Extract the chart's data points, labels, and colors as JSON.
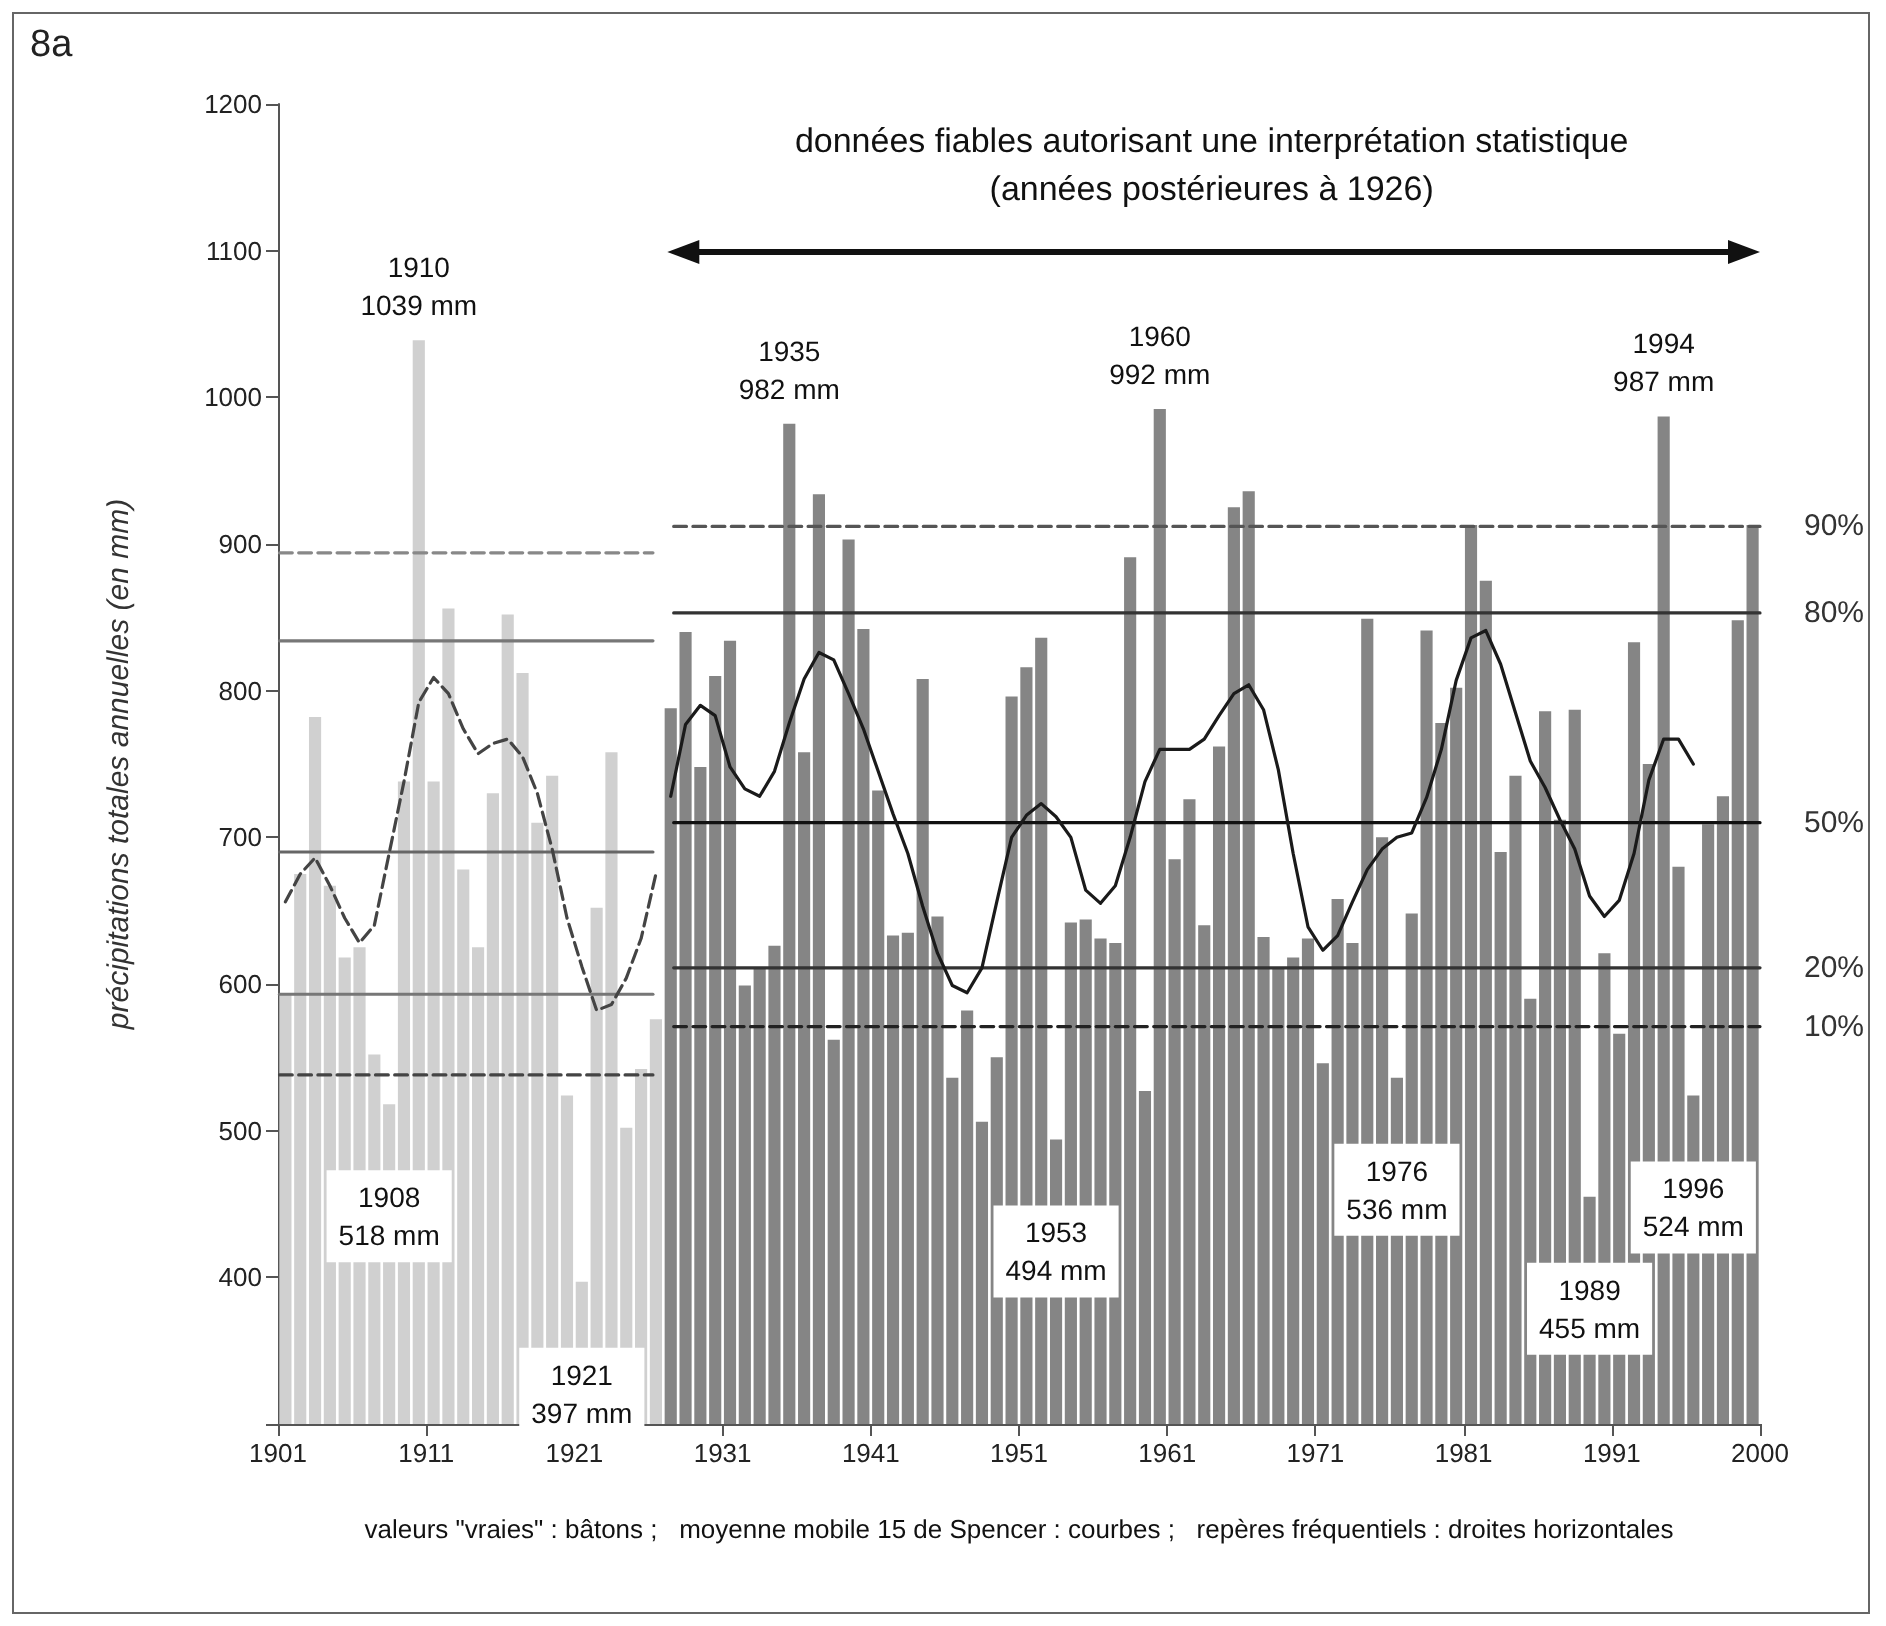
{
  "chart_data": {
    "type": "bar",
    "title": "8a",
    "ylabel": "précipitations totales annuelles (en mm)",
    "xlim": [
      1900.5,
      2000.5
    ],
    "xticks": [
      {
        "value": 1900.5,
        "label": "1901"
      },
      {
        "value": 1910.5,
        "label": "1911"
      },
      {
        "value": 1920.5,
        "label": "1921"
      },
      {
        "value": 1930.5,
        "label": "1931"
      },
      {
        "value": 1940.5,
        "label": "1941"
      },
      {
        "value": 1950.5,
        "label": "1951"
      },
      {
        "value": 1960.5,
        "label": "1961"
      },
      {
        "value": 1970.5,
        "label": "1971"
      },
      {
        "value": 1980.5,
        "label": "1981"
      },
      {
        "value": 1990.5,
        "label": "1991"
      },
      {
        "value": 2000.5,
        "label": "2000"
      }
    ],
    "ylim": [
      300,
      1200
    ],
    "yticks": [
      {
        "value": 300,
        "label": null
      },
      400,
      500,
      600,
      700,
      800,
      900,
      1000,
      1100,
      1200
    ],
    "grid": false,
    "legend": false,
    "marker": "none",
    "series": [
      {
        "color": "#d0d0d0",
        "x": [
          1901,
          1902,
          1903,
          1904,
          1905,
          1906,
          1907,
          1908,
          1909,
          1910,
          1911,
          1912,
          1913,
          1914,
          1915,
          1916,
          1917,
          1918,
          1919,
          1920,
          1921,
          1922,
          1923,
          1924,
          1925,
          1926
        ],
        "values": [
          593,
          675,
          782,
          667,
          618,
          625,
          552,
          518,
          738,
          1039,
          738,
          856,
          678,
          625,
          730,
          852,
          812,
          710,
          742,
          524,
          397,
          652,
          758,
          502,
          542,
          576
        ]
      },
      {
        "color": "#858585",
        "x": [
          1927,
          1928,
          1929,
          1930,
          1931,
          1932,
          1933,
          1934,
          1935,
          1936,
          1937,
          1938,
          1939,
          1940,
          1941,
          1942,
          1943,
          1944,
          1945,
          1946,
          1947,
          1948,
          1949,
          1950,
          1951,
          1952,
          1953,
          1954,
          1955,
          1956,
          1957,
          1958,
          1959,
          1960,
          1961,
          1962,
          1963,
          1964,
          1965,
          1966,
          1967,
          1968,
          1969,
          1970,
          1971,
          1972,
          1973,
          1974,
          1975,
          1976,
          1977,
          1978,
          1979,
          1980,
          1981,
          1982,
          1983,
          1984,
          1985,
          1986,
          1987,
          1988,
          1989,
          1990,
          1991,
          1992,
          1993,
          1994,
          1995,
          1996,
          1997,
          1998,
          1999,
          2000
        ],
        "values": [
          788,
          840,
          748,
          810,
          834,
          599,
          611,
          626,
          982,
          758,
          934,
          562,
          903,
          842,
          732,
          633,
          635,
          808,
          646,
          536,
          582,
          506,
          550,
          796,
          816,
          836,
          494,
          642,
          644,
          631,
          628,
          891,
          527,
          992,
          685,
          726,
          640,
          762,
          925,
          936,
          632,
          611,
          618,
          631,
          546,
          658,
          628,
          849,
          700,
          536,
          648,
          841,
          778,
          802,
          913,
          875,
          690,
          742,
          590,
          786,
          712,
          787,
          455,
          621,
          566,
          833,
          750,
          987,
          680,
          524,
          709,
          728,
          848,
          913
        ]
      },
      {
        "type": "line",
        "color": "#888888",
        "line_style": "dashed",
        "x": [
          1900.6,
          1925.8
        ],
        "values": [
          894,
          894
        ]
      },
      {
        "type": "line",
        "color": "#777777",
        "line_style": "solid",
        "x": [
          1900.6,
          1925.8
        ],
        "values": [
          834,
          834
        ]
      },
      {
        "type": "line",
        "color": "#666666",
        "line_style": "solid",
        "x": [
          1900.6,
          1925.8
        ],
        "values": [
          690,
          690
        ]
      },
      {
        "type": "line",
        "color": "#777777",
        "line_style": "solid",
        "x": [
          1900.6,
          1925.8
        ],
        "values": [
          593,
          593
        ]
      },
      {
        "type": "line",
        "color": "#444444",
        "line_style": "dashed",
        "x": [
          1900.6,
          1925.8
        ],
        "values": [
          538,
          538
        ]
      },
      {
        "type": "line",
        "name": "90%",
        "color": "#555555",
        "line_style": "dashed",
        "x": [
          1927.2,
          2000.5
        ],
        "values": [
          912,
          912
        ]
      },
      {
        "type": "line",
        "name": "80%",
        "color": "#333333",
        "line_style": "solid",
        "x": [
          1927.2,
          2000.5
        ],
        "values": [
          853,
          853
        ]
      },
      {
        "type": "line",
        "name": "50%",
        "color": "#111111",
        "line_style": "solid",
        "x": [
          1927.2,
          2000.5
        ],
        "values": [
          710,
          710
        ]
      },
      {
        "type": "line",
        "name": "20%",
        "color": "#333333",
        "line_style": "solid",
        "x": [
          1927.2,
          2000.5
        ],
        "values": [
          611,
          611
        ]
      },
      {
        "type": "line",
        "name": "10%",
        "color": "#222222",
        "line_style": "dashed",
        "x": [
          1927.2,
          2000.5
        ],
        "values": [
          571,
          571
        ]
      },
      {
        "type": "line",
        "color": "#444444",
        "line_style": "dashed",
        "x": [
          1901,
          1902,
          1903,
          1904,
          1905,
          1906,
          1907,
          1908,
          1909,
          1910,
          1911,
          1912,
          1913,
          1914,
          1915,
          1916,
          1917,
          1918,
          1919,
          1920,
          1921,
          1922,
          1923,
          1924,
          1925,
          1926
        ],
        "values": [
          656,
          675,
          686,
          667,
          645,
          628,
          640,
          689,
          738,
          792,
          809,
          798,
          774,
          757,
          764,
          767,
          755,
          730,
          692,
          645,
          612,
          582,
          586,
          604,
          631,
          675
        ]
      },
      {
        "type": "line",
        "color": "#1a1a1a",
        "line_style": "solid",
        "x": [
          1927,
          1928,
          1929,
          1930,
          1931,
          1932,
          1933,
          1934,
          1935,
          1936,
          1937,
          1938,
          1939,
          1940,
          1941,
          1942,
          1943,
          1944,
          1945,
          1946,
          1947,
          1948,
          1949,
          1950,
          1951,
          1952,
          1953,
          1954,
          1955,
          1956,
          1957,
          1958,
          1959,
          1960,
          1961,
          1962,
          1963,
          1964,
          1965,
          1966,
          1967,
          1968,
          1969,
          1970,
          1971,
          1972,
          1973,
          1974,
          1975,
          1976,
          1977,
          1978,
          1979,
          1980,
          1981,
          1982,
          1983,
          1984,
          1985,
          1986,
          1987,
          1988,
          1989,
          1990,
          1991,
          1992,
          1993,
          1994,
          1995,
          1996
        ],
        "values": [
          728,
          777,
          790,
          783,
          748,
          733,
          728,
          745,
          778,
          808,
          826,
          821,
          798,
          774,
          745,
          716,
          689,
          653,
          621,
          599,
          594,
          611,
          656,
          700,
          715,
          723,
          714,
          700,
          664,
          655,
          667,
          700,
          738,
          760,
          760,
          760,
          767,
          783,
          798,
          804,
          787,
          746,
          689,
          639,
          623,
          633,
          656,
          678,
          692,
          700,
          703,
          727,
          760,
          807,
          836,
          841,
          818,
          785,
          752,
          734,
          712,
          692,
          660,
          646,
          657,
          689,
          739,
          767,
          767,
          750
        ]
      }
    ],
    "annotations": [
      "données fiables autorisant une interprétation statistique",
      "(années postérieures à 1926)",
      {
        "text": "1910\n1039 mm",
        "x": 1910,
        "y": 1039
      },
      {
        "text": "1908\n518 mm",
        "x": 1908,
        "y": 518
      },
      {
        "text": "1921\n397 mm",
        "x": 1921,
        "y": 397
      },
      {
        "text": "1935\n982 mm",
        "x": 1935,
        "y": 982
      },
      {
        "text": "1953\n494 mm",
        "x": 1953,
        "y": 494
      },
      {
        "text": "1960\n992 mm",
        "x": 1960,
        "y": 992
      },
      {
        "text": "1976\n536 mm",
        "x": 1976,
        "y": 536
      },
      {
        "text": "1989\n455 mm",
        "x": 1989,
        "y": 455
      },
      {
        "text": "1994\n987 mm",
        "x": 1994,
        "y": 987
      },
      {
        "text": "1996\n524 mm",
        "x": 1996,
        "y": 524
      },
      "valeurs \"vraies\" : bâtons ;   moyenne mobile 15 de Spencer : courbes ;   repères fréquentiels : droites horizontales"
    ]
  }
}
